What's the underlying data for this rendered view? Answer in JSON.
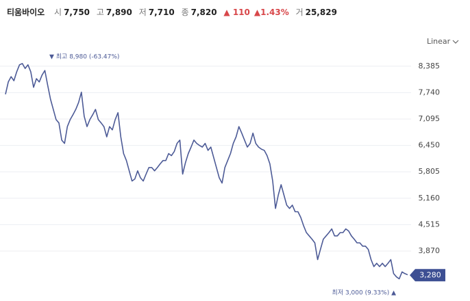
{
  "header": {
    "name": "티움바이오",
    "items": [
      {
        "label": "시",
        "value": "7,750"
      },
      {
        "label": "고",
        "value": "7,890"
      },
      {
        "label": "저",
        "value": "7,710"
      },
      {
        "label": "종",
        "value": "7,820"
      }
    ],
    "change": "▲ 110",
    "change_pct": "▲1.43%",
    "volume_label": "거",
    "volume": "25,829"
  },
  "chart_data": {
    "type": "line",
    "scale_label": "Linear",
    "color": "#4c5a96",
    "grid": true,
    "values": [
      7700,
      8000,
      8130,
      8030,
      8250,
      8420,
      8450,
      8330,
      8420,
      8250,
      7870,
      8080,
      8000,
      8170,
      8280,
      7920,
      7580,
      7330,
      7080,
      7000,
      6580,
      6500,
      6910,
      7080,
      7200,
      7330,
      7500,
      7750,
      7160,
      6910,
      7080,
      7200,
      7330,
      7080,
      7000,
      6910,
      6660,
      6910,
      6830,
      7080,
      7250,
      6660,
      6250,
      6080,
      5830,
      5580,
      5630,
      5830,
      5660,
      5580,
      5750,
      5910,
      5910,
      5830,
      5910,
      6000,
      6080,
      6080,
      6250,
      6200,
      6300,
      6500,
      6580,
      5750,
      6030,
      6250,
      6410,
      6580,
      6500,
      6450,
      6410,
      6500,
      6330,
      6410,
      6160,
      5910,
      5660,
      5530,
      5910,
      6080,
      6250,
      6500,
      6660,
      6910,
      6750,
      6580,
      6410,
      6500,
      6750,
      6500,
      6410,
      6360,
      6330,
      6200,
      6000,
      5580,
      4910,
      5240,
      5490,
      5240,
      4990,
      4910,
      4990,
      4830,
      4830,
      4690,
      4490,
      4320,
      4240,
      4160,
      4070,
      3660,
      3910,
      4160,
      4240,
      4320,
      4410,
      4240,
      4240,
      4320,
      4320,
      4410,
      4360,
      4240,
      4160,
      4070,
      4070,
      3990,
      3990,
      3910,
      3660,
      3490,
      3570,
      3490,
      3570,
      3490,
      3570,
      3660,
      3320,
      3240,
      3190,
      3360,
      3320,
      3290
    ],
    "ylim": [
      2900,
      9000
    ],
    "yticks": [
      {
        "value": 3870,
        "label": "3,870"
      },
      {
        "value": 4515,
        "label": "4,515"
      },
      {
        "value": 5160,
        "label": "5,160"
      },
      {
        "value": 5805,
        "label": "5,805"
      },
      {
        "value": 6450,
        "label": "6,450"
      },
      {
        "value": 7095,
        "label": "7,095"
      },
      {
        "value": 7740,
        "label": "7,740"
      },
      {
        "value": 8385,
        "label": "8,385"
      }
    ],
    "current_price": {
      "value": 3280,
      "label": "3,280"
    },
    "annotations": [
      "▼ 최고 8,980 (-63.47%)",
      "최저 3,000 (9.33%) ▲"
    ]
  }
}
